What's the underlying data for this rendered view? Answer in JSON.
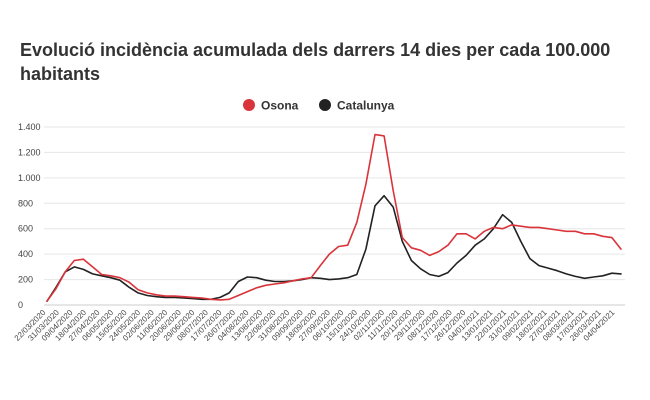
{
  "chart_data": {
    "type": "line",
    "title": "Evolució incidència acumulada dels darrers 14 dies per cada 100.000 habitants",
    "xlabel": "",
    "ylabel": "",
    "ylim": [
      0,
      1400
    ],
    "yticks": [
      0,
      200,
      400,
      600,
      800,
      "1.000",
      "1.200",
      "1.400"
    ],
    "ytick_labels": [
      "0",
      "200",
      "400",
      "600",
      "800",
      "1.000",
      "1.200",
      "1.400"
    ],
    "grid": true,
    "legend_position": "top-center",
    "x_tick_labels": [
      "22/03/2020",
      "31/03/2020",
      "09/04/2020",
      "18/04/2020",
      "27/04/2020",
      "06/05/2020",
      "15/05/2020",
      "24/05/2020",
      "02/06/2020",
      "11/06/2020",
      "20/06/2020",
      "29/06/2020",
      "08/07/2020",
      "17/07/2020",
      "26/07/2020",
      "04/08/2020",
      "13/08/2020",
      "22/08/2020",
      "31/08/2020",
      "09/09/2020",
      "18/09/2020",
      "27/09/2020",
      "06/10/2020",
      "15/10/2020",
      "24/10/2020",
      "02/11/2020",
      "11/11/2020",
      "20/11/2020",
      "29/11/2020",
      "08/12/2020",
      "17/12/2020",
      "26/12/2020",
      "04/01/2021",
      "13/01/2021",
      "22/01/2021",
      "31/01/2021",
      "09/02/2021",
      "18/02/2021",
      "27/02/2021",
      "08/03/2021",
      "17/03/2021",
      "26/03/2021",
      "04/04/2021"
    ],
    "series": [
      {
        "name": "Osona",
        "color": "#d9343a",
        "values": [
          30,
          130,
          260,
          350,
          360,
          300,
          240,
          230,
          215,
          180,
          120,
          95,
          80,
          70,
          70,
          65,
          60,
          55,
          45,
          40,
          45,
          75,
          105,
          135,
          155,
          165,
          175,
          190,
          205,
          215,
          310,
          400,
          460,
          470,
          650,
          950,
          1340,
          1330,
          900,
          530,
          450,
          430,
          390,
          420,
          470,
          560,
          560,
          520,
          580,
          610,
          600,
          630,
          620,
          610,
          610,
          600,
          590,
          580,
          580,
          560,
          560,
          540,
          530,
          440
        ]
      },
      {
        "name": "Catalunya",
        "color": "#222222",
        "values": [
          30,
          140,
          260,
          300,
          280,
          245,
          230,
          215,
          195,
          140,
          95,
          75,
          65,
          60,
          60,
          55,
          50,
          45,
          45,
          60,
          95,
          185,
          220,
          215,
          195,
          185,
          185,
          190,
          200,
          215,
          210,
          200,
          205,
          215,
          240,
          440,
          780,
          860,
          770,
          500,
          350,
          285,
          240,
          225,
          255,
          330,
          390,
          470,
          520,
          600,
          710,
          650,
          500,
          365,
          310,
          290,
          270,
          245,
          225,
          210,
          220,
          230,
          250,
          245
        ]
      }
    ]
  }
}
